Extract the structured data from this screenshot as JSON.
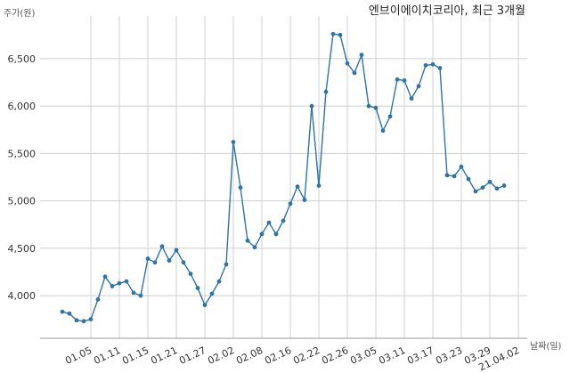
{
  "chart_data": {
    "type": "line",
    "title": "엔브이에이치코리아, 최근 3개월",
    "ylabel": "주가(원)",
    "xlabel": "날짜(일)",
    "ylim": [
      3550,
      6950
    ],
    "yticks": [
      4000,
      4500,
      5000,
      5500,
      6000,
      6500
    ],
    "ytick_labels": [
      "4,000",
      "4,500",
      "5,000",
      "5,500",
      "6,000",
      "6,500"
    ],
    "xtick_labels": [
      "01.05",
      "01.11",
      "01.15",
      "01.21",
      "01.27",
      "02.02",
      "02.08",
      "02.16",
      "02.22",
      "02.26",
      "03.05",
      "03.11",
      "03.17",
      "03.23",
      "03.29",
      "21.04.02"
    ],
    "xtick_index": [
      4,
      8,
      12,
      16,
      20,
      24,
      28,
      32,
      36,
      40,
      44,
      48,
      52,
      56,
      60,
      64
    ],
    "grid": true,
    "line_color": "#2e74a8",
    "series": [
      {
        "values": [
          3830,
          3810,
          3740,
          3730,
          3750,
          3960,
          4200,
          4100,
          4130,
          4150,
          4030,
          4000,
          4390,
          4350,
          4520,
          4370,
          4480,
          4350,
          4230,
          4080,
          3900,
          4020,
          4150,
          4330,
          5620,
          5140,
          4580,
          4510,
          4650,
          4770,
          4650,
          4790,
          4970,
          5150,
          5010,
          6000,
          5160,
          6150,
          6760,
          6750,
          6450,
          6350,
          6540,
          6000,
          5980,
          5740,
          5890,
          6280,
          6270,
          6080,
          6210,
          6430,
          6440,
          6400,
          5270,
          5260,
          5360,
          5230,
          5100,
          5140,
          5200,
          5130,
          5160
        ]
      }
    ]
  }
}
